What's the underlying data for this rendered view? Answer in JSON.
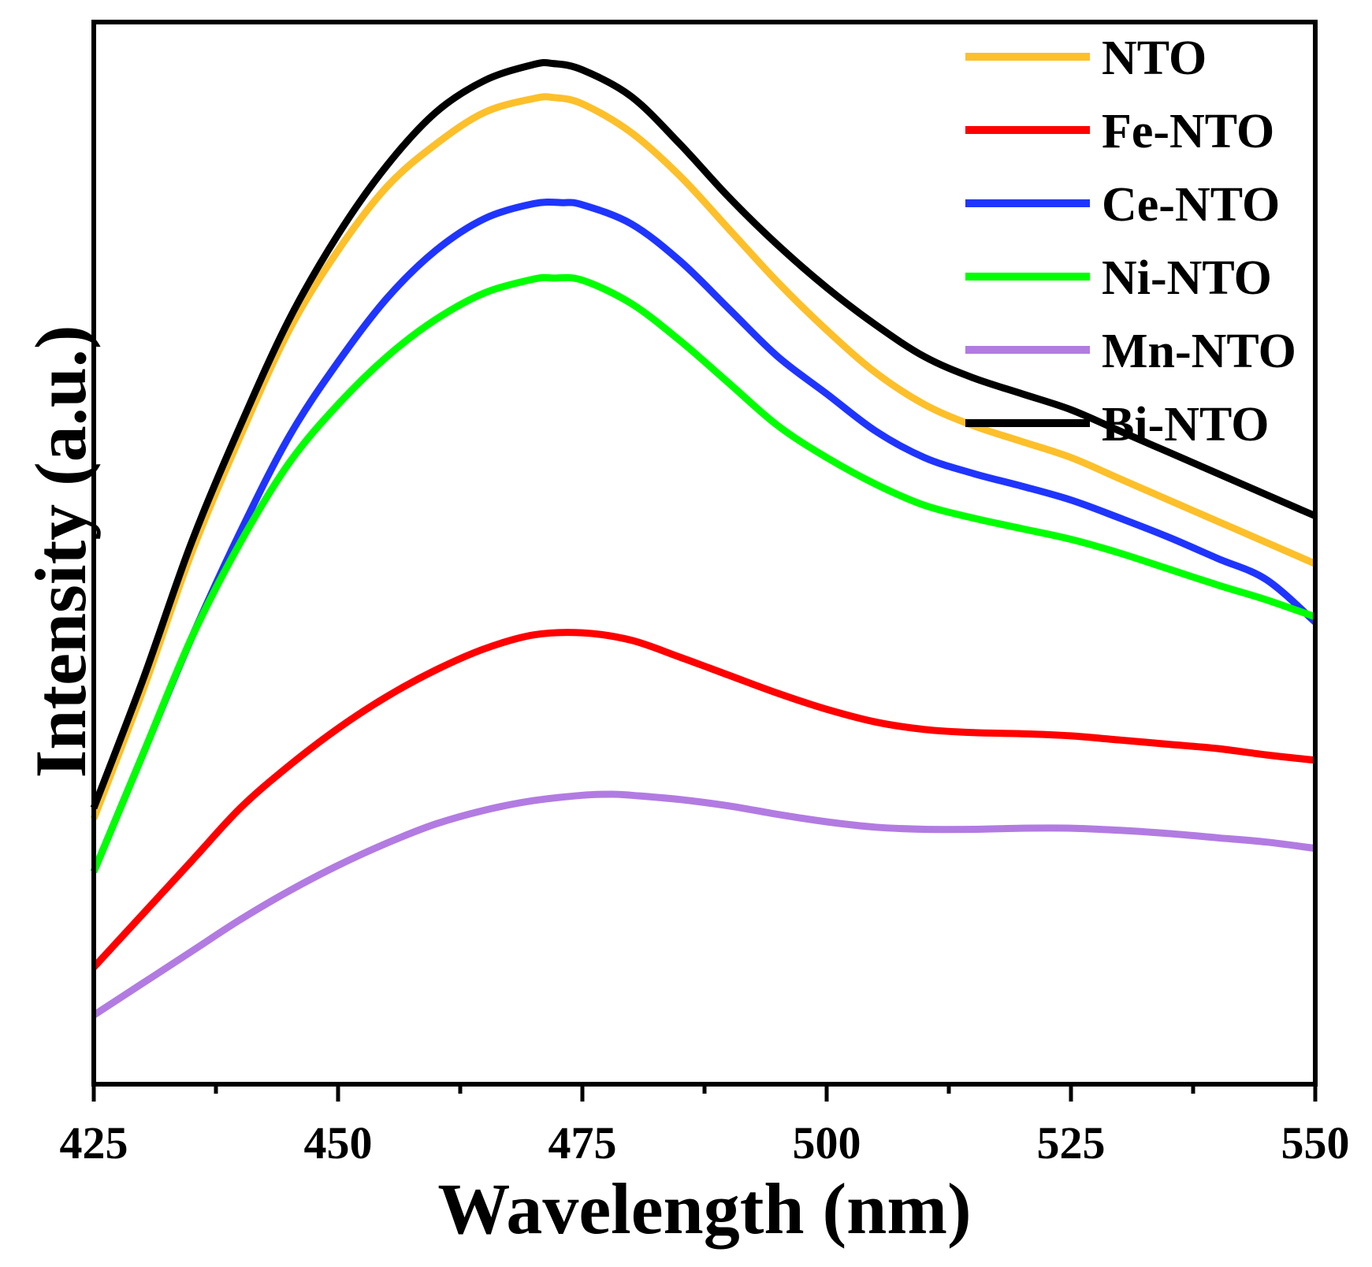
{
  "chart_data": {
    "type": "line",
    "title": "",
    "xlabel": "Wavelength (nm)",
    "ylabel": "Intensity (a.u.)",
    "xlim": [
      425,
      550
    ],
    "ylim": [
      0,
      100
    ],
    "xticks": [
      425,
      450,
      475,
      500,
      525,
      550
    ],
    "xtick_labels": [
      "425",
      "450",
      "475",
      "500",
      "525",
      "550"
    ],
    "grid": false,
    "legend_position": "top-right",
    "series": [
      {
        "name": "NTO",
        "color": "#FDC02A",
        "x": [
          425,
          430,
          435,
          440,
          445,
          450,
          455,
          460,
          465,
          470,
          472,
          475,
          480,
          485,
          490,
          495,
          500,
          505,
          510,
          515,
          520,
          525,
          530,
          535,
          540,
          545,
          550
        ],
        "y": [
          25,
          37,
          50,
          61,
          71,
          78.5,
          84.5,
          88.5,
          91.5,
          92.8,
          92.9,
          92.3,
          89.6,
          85.5,
          80.5,
          75.5,
          71,
          67,
          64,
          62,
          60.5,
          59,
          57,
          55,
          53,
          51,
          49
        ]
      },
      {
        "name": "Fe-NTO",
        "color": "#FF0000",
        "x": [
          425,
          430,
          435,
          440,
          445,
          450,
          455,
          460,
          465,
          470,
          475,
          480,
          485,
          490,
          495,
          500,
          505,
          510,
          515,
          520,
          525,
          530,
          535,
          540,
          545,
          550
        ],
        "y": [
          11,
          16,
          21,
          26,
          30,
          33.5,
          36.5,
          39,
          41,
          42.3,
          42.5,
          41.8,
          40.2,
          38.5,
          36.8,
          35.3,
          34.1,
          33.4,
          33.1,
          33,
          32.8,
          32.4,
          32,
          31.6,
          31,
          30.5
        ]
      },
      {
        "name": "Ce-NTO",
        "color": "#1F35FF",
        "x": [
          425,
          430,
          435,
          440,
          445,
          450,
          455,
          460,
          465,
          470,
          473,
          475,
          480,
          485,
          490,
          495,
          500,
          505,
          510,
          515,
          520,
          525,
          530,
          535,
          540,
          545,
          550
        ],
        "y": [
          20,
          31,
          42,
          52,
          61,
          68,
          74,
          78.5,
          81.5,
          82.9,
          83,
          82.8,
          81,
          77.5,
          73,
          68.5,
          65,
          61.5,
          59,
          57.5,
          56.3,
          55,
          53.3,
          51.5,
          49.5,
          47.5,
          43.5
        ]
      },
      {
        "name": "Ni-NTO",
        "color": "#00FF00",
        "x": [
          425,
          430,
          435,
          440,
          445,
          450,
          455,
          460,
          465,
          470,
          472,
          475,
          480,
          485,
          490,
          495,
          500,
          505,
          510,
          515,
          520,
          525,
          530,
          535,
          540,
          545,
          550
        ],
        "y": [
          20,
          31,
          42,
          51,
          58.5,
          64,
          68.5,
          72,
          74.5,
          75.8,
          75.9,
          75.7,
          73.5,
          70,
          66,
          62,
          59,
          56.5,
          54.5,
          53.3,
          52.3,
          51.3,
          50,
          48.5,
          47,
          45.6,
          44
        ]
      },
      {
        "name": "Mn-NTO",
        "color": "#B27BE2",
        "x": [
          425,
          430,
          435,
          440,
          445,
          450,
          455,
          460,
          465,
          470,
          475,
          478,
          480,
          485,
          490,
          495,
          500,
          505,
          510,
          515,
          520,
          525,
          530,
          535,
          540,
          545,
          550
        ],
        "y": [
          6.5,
          9.5,
          12.5,
          15.5,
          18.2,
          20.6,
          22.7,
          24.5,
          25.8,
          26.7,
          27.2,
          27.3,
          27.2,
          26.8,
          26.2,
          25.4,
          24.7,
          24.2,
          24,
          24,
          24.1,
          24.1,
          23.9,
          23.6,
          23.2,
          22.8,
          22.2
        ]
      },
      {
        "name": "Bi-NTO",
        "color": "#000000",
        "x": [
          425,
          430,
          435,
          440,
          445,
          450,
          455,
          460,
          465,
          470,
          472,
          475,
          480,
          485,
          490,
          495,
          500,
          505,
          510,
          515,
          520,
          525,
          530,
          535,
          540,
          545,
          550
        ],
        "y": [
          26,
          38,
          51,
          62,
          72,
          80,
          86.5,
          91.5,
          94.5,
          96,
          96.1,
          95.5,
          93,
          88.5,
          83.5,
          79,
          75,
          71.5,
          68.5,
          66.5,
          65,
          63.5,
          61.5,
          59.5,
          57.5,
          55.5,
          53.5
        ]
      }
    ]
  }
}
